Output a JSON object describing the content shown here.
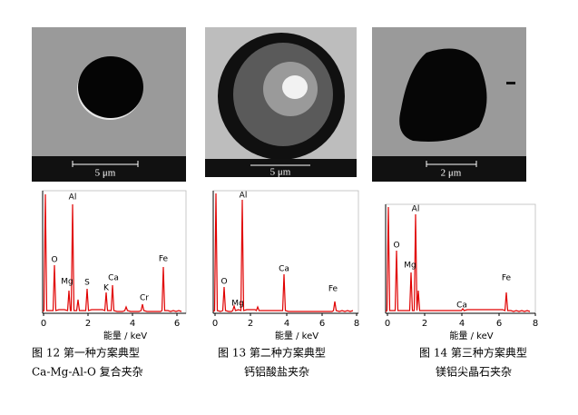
{
  "panels": [
    {
      "image": {
        "scale": "5 μm"
      },
      "spectrum": {
        "peaks": [
          "O",
          "Al",
          "Mg",
          "S",
          "K",
          "Ca",
          "Cr",
          "Fe"
        ],
        "xticks": [
          "0",
          "2",
          "4",
          "6"
        ],
        "xlabel": "能量 / keV"
      },
      "caption": [
        "图 12 第一种方案典型",
        "Ca-Mg-Al-O 复合夹杂"
      ]
    },
    {
      "image": {
        "scale": "5 μm"
      },
      "spectrum": {
        "peaks": [
          "O",
          "Mg",
          "Al",
          "Ca",
          "Fe"
        ],
        "xticks": [
          "0",
          "2",
          "4",
          "6",
          "8"
        ],
        "xlabel": "能量 / keV"
      },
      "caption": [
        "图 13 第二种方案典型",
        "钙铝酸盐夹杂"
      ]
    },
    {
      "image": {
        "scale": "2 μm"
      },
      "spectrum": {
        "peaks": [
          "O",
          "Mg",
          "Al",
          "Ca",
          "Fe"
        ],
        "xticks": [
          "0",
          "2",
          "4",
          "6",
          "8"
        ],
        "xlabel": "能量 / keV"
      },
      "caption": [
        "图 14 第三种方案典型",
        "镁铝尖晶石夹杂"
      ]
    }
  ]
}
